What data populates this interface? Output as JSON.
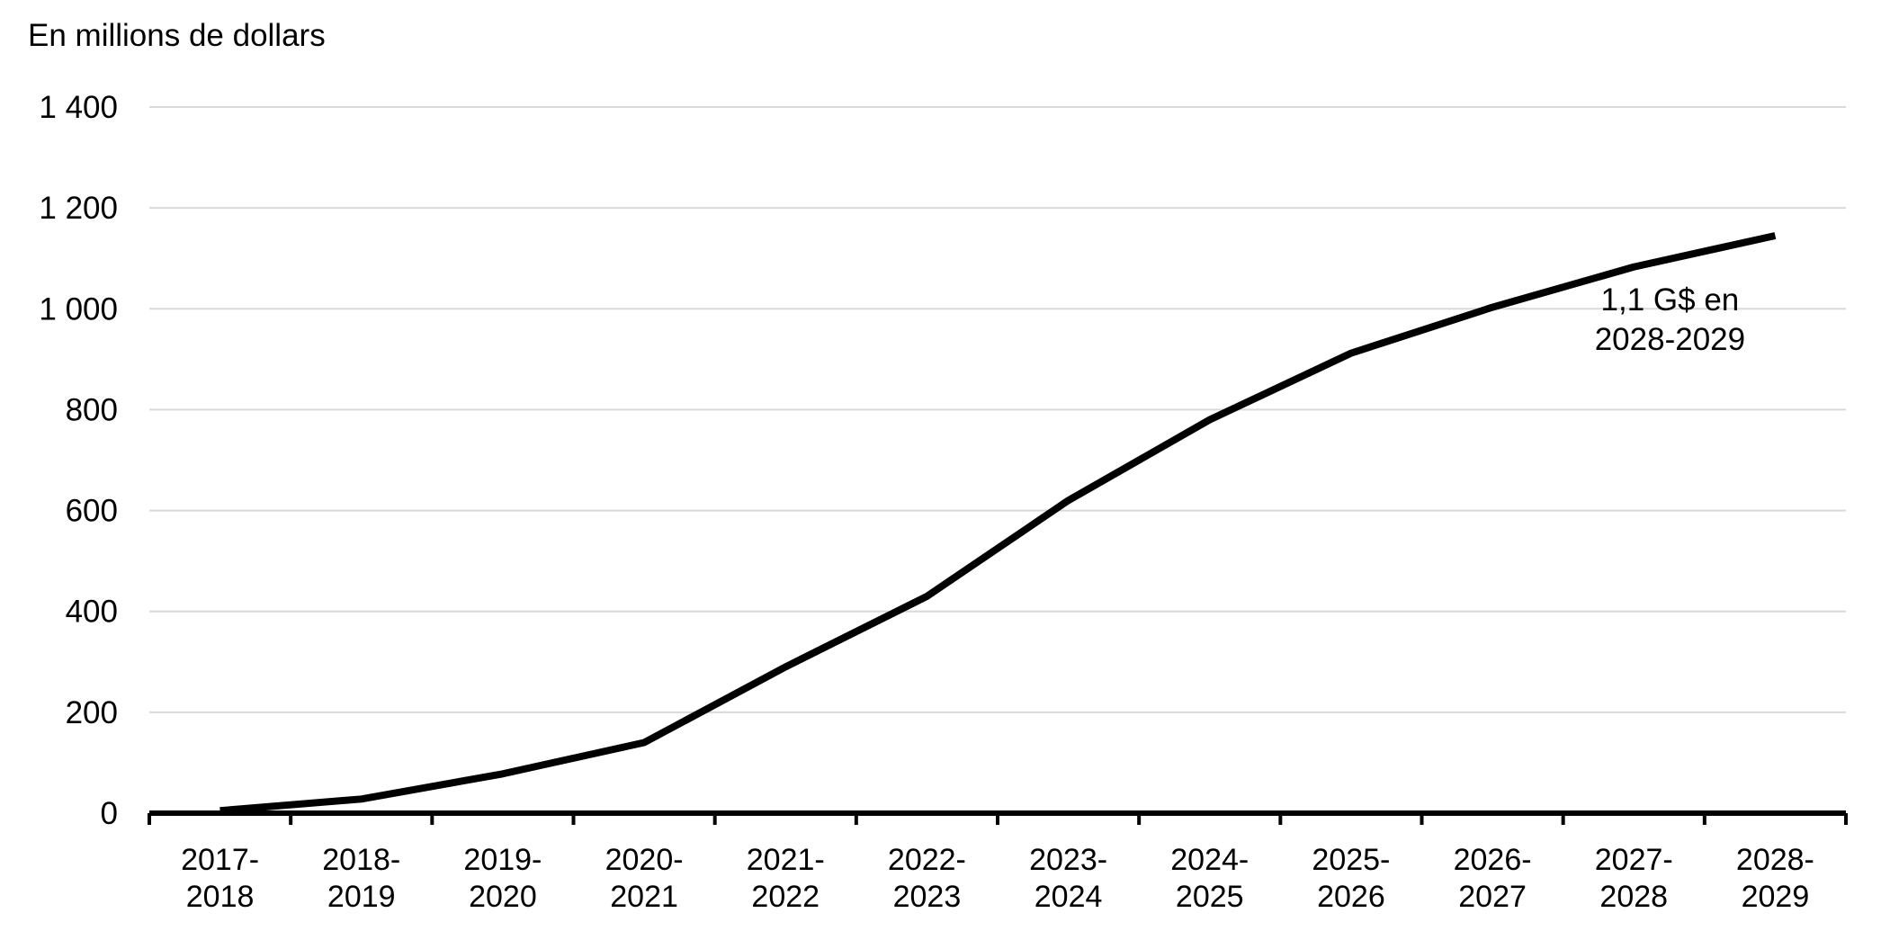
{
  "chart_data": {
    "type": "line",
    "ylabel": "En millions de dollars",
    "xlabel": "",
    "ylim": [
      0,
      1400
    ],
    "yticks": [
      0,
      200,
      400,
      600,
      800,
      1000,
      1200,
      1400
    ],
    "ytick_labels": [
      "0",
      "200",
      "400",
      "600",
      "800",
      "1 000",
      "1 200",
      "1 400"
    ],
    "grid": true,
    "categories": [
      [
        "2017-",
        "2018"
      ],
      [
        "2018-",
        "2019"
      ],
      [
        "2019-",
        "2020"
      ],
      [
        "2020-",
        "2021"
      ],
      [
        "2021-",
        "2022"
      ],
      [
        "2022-",
        "2023"
      ],
      [
        "2023-",
        "2024"
      ],
      [
        "2024-",
        "2025"
      ],
      [
        "2025-",
        "2026"
      ],
      [
        "2026-",
        "2027"
      ],
      [
        "2027-",
        "2028"
      ],
      [
        "2028-",
        "2029"
      ]
    ],
    "series": [
      {
        "values": [
          5,
          28,
          78,
          140,
          290,
          430,
          620,
          780,
          912,
          1003,
          1083,
          1145
        ],
        "color": "#000000"
      }
    ],
    "annotation": {
      "lines": [
        "1,1 G$ en",
        "2028-2029"
      ]
    }
  }
}
